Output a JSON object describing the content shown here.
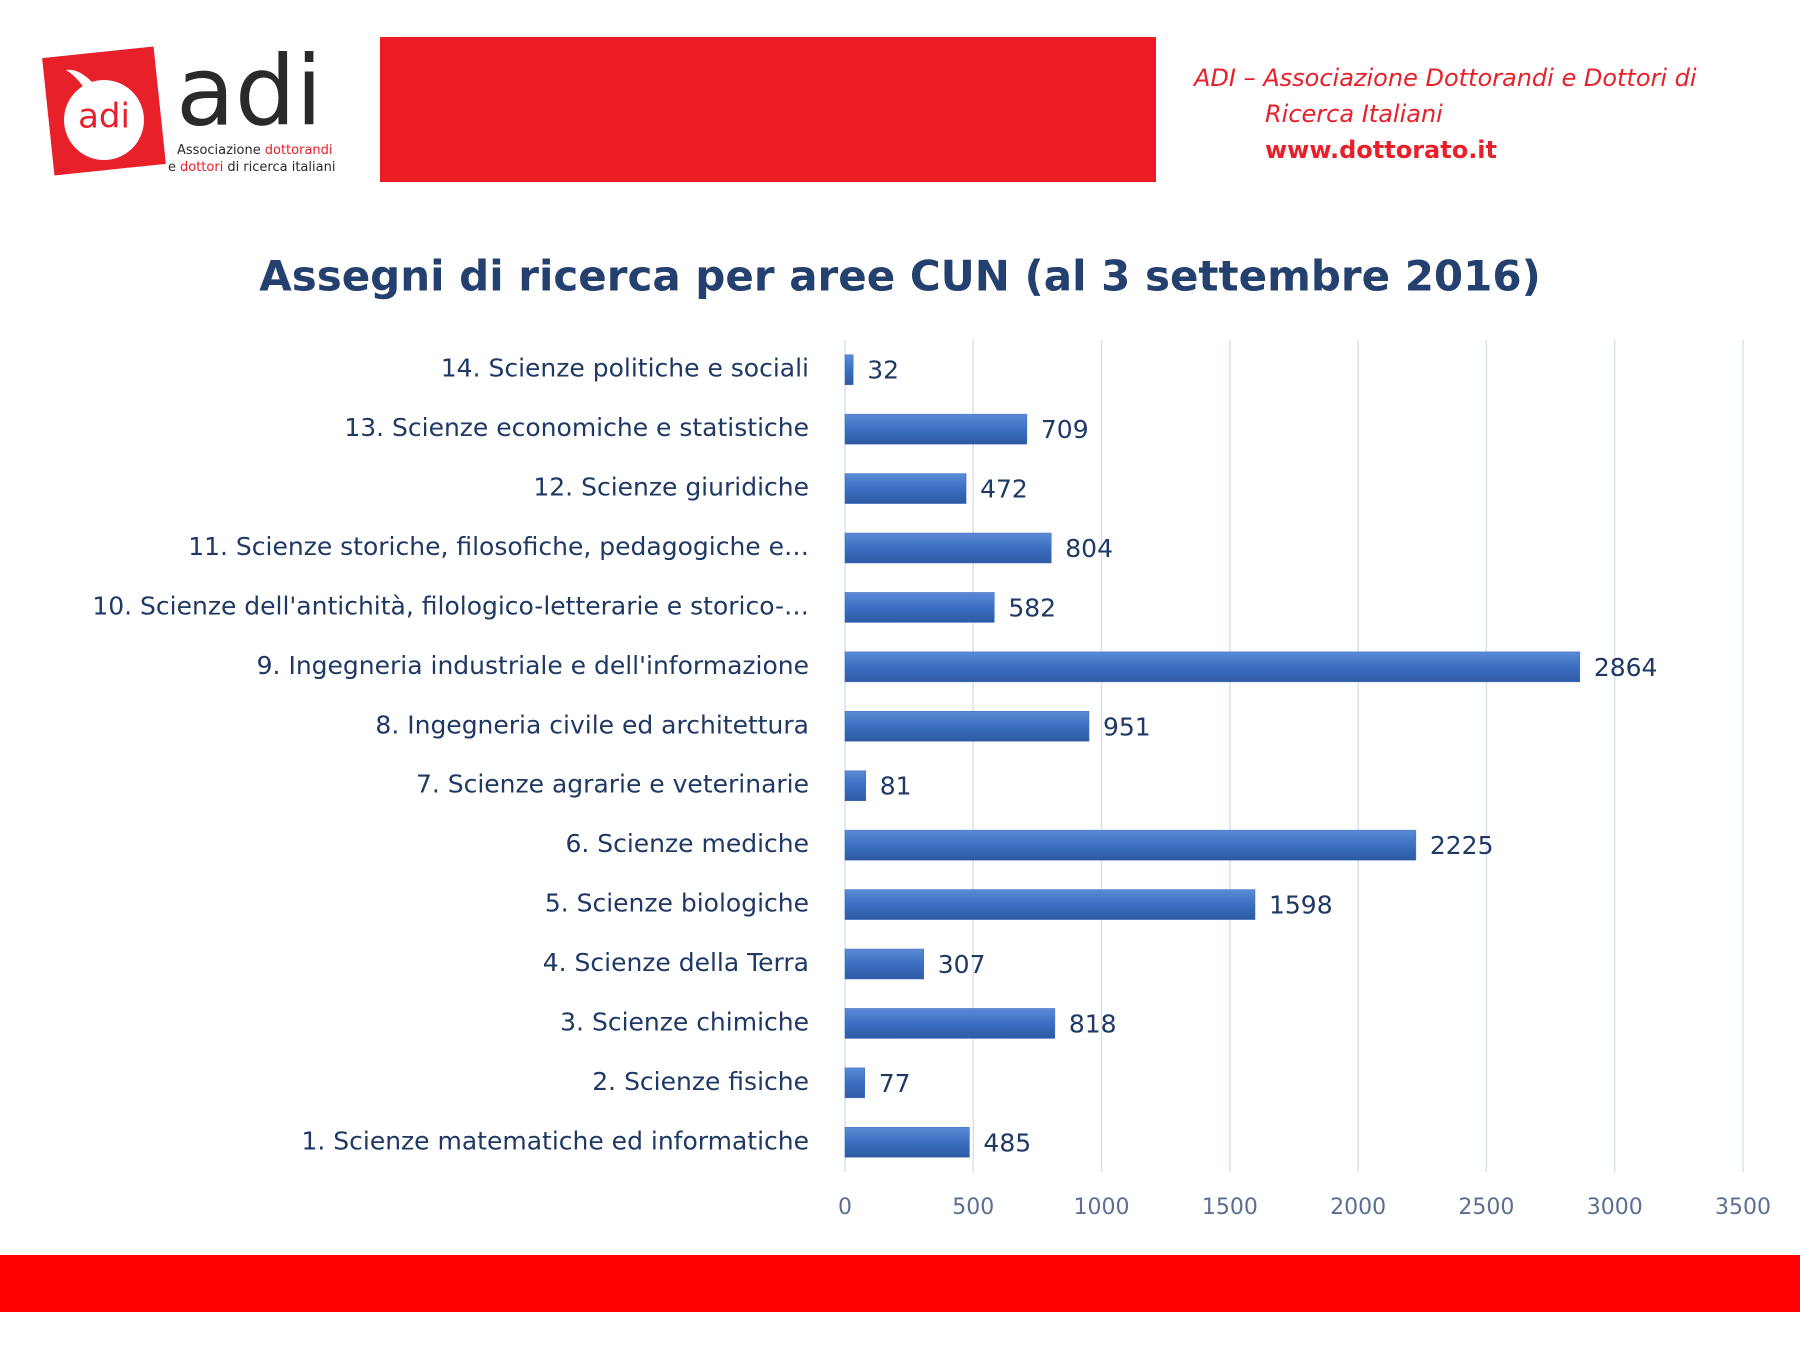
{
  "header": {
    "logo_mark": "adi",
    "logo_word": "adi",
    "tagline": [
      [
        "Associazione",
        "dottorandi"
      ],
      [
        "e",
        "dottori",
        "di ricerca italiani"
      ]
    ],
    "org_lines": [
      "ADI – Associazione Dottorandi e Dottori di",
      "Ricerca Italiani"
    ],
    "url": "www.dottorato.it"
  },
  "chart_data": {
    "type": "barh",
    "title": "Assegni di ricerca per aree CUN (al 3 settembre 2016)",
    "categories": [
      "1. Scienze matematiche ed informatiche",
      "2. Scienze fisiche",
      "3. Scienze chimiche",
      "4. Scienze della Terra",
      "5. Scienze biologiche",
      "6. Scienze mediche",
      "7. Scienze agrarie e veterinarie",
      "8. Ingegneria civile ed architettura",
      "9. Ingegneria industriale e dell'informazione",
      "10. Scienze dell'antichità, filologico-letterarie e storico-…",
      "11. Scienze storiche, filosofiche, pedagogiche e…",
      "12. Scienze giuridiche",
      "13. Scienze economiche e statistiche",
      "14. Scienze politiche e sociali"
    ],
    "values": [
      485,
      77,
      818,
      307,
      1598,
      2225,
      81,
      951,
      2864,
      582,
      804,
      472,
      709,
      32
    ],
    "color": "#3b6fc1",
    "xlim": [
      0,
      3500
    ],
    "xticks": [
      0,
      500,
      1000,
      1500,
      2000,
      2500,
      3000,
      3500
    ],
    "grid": true
  }
}
